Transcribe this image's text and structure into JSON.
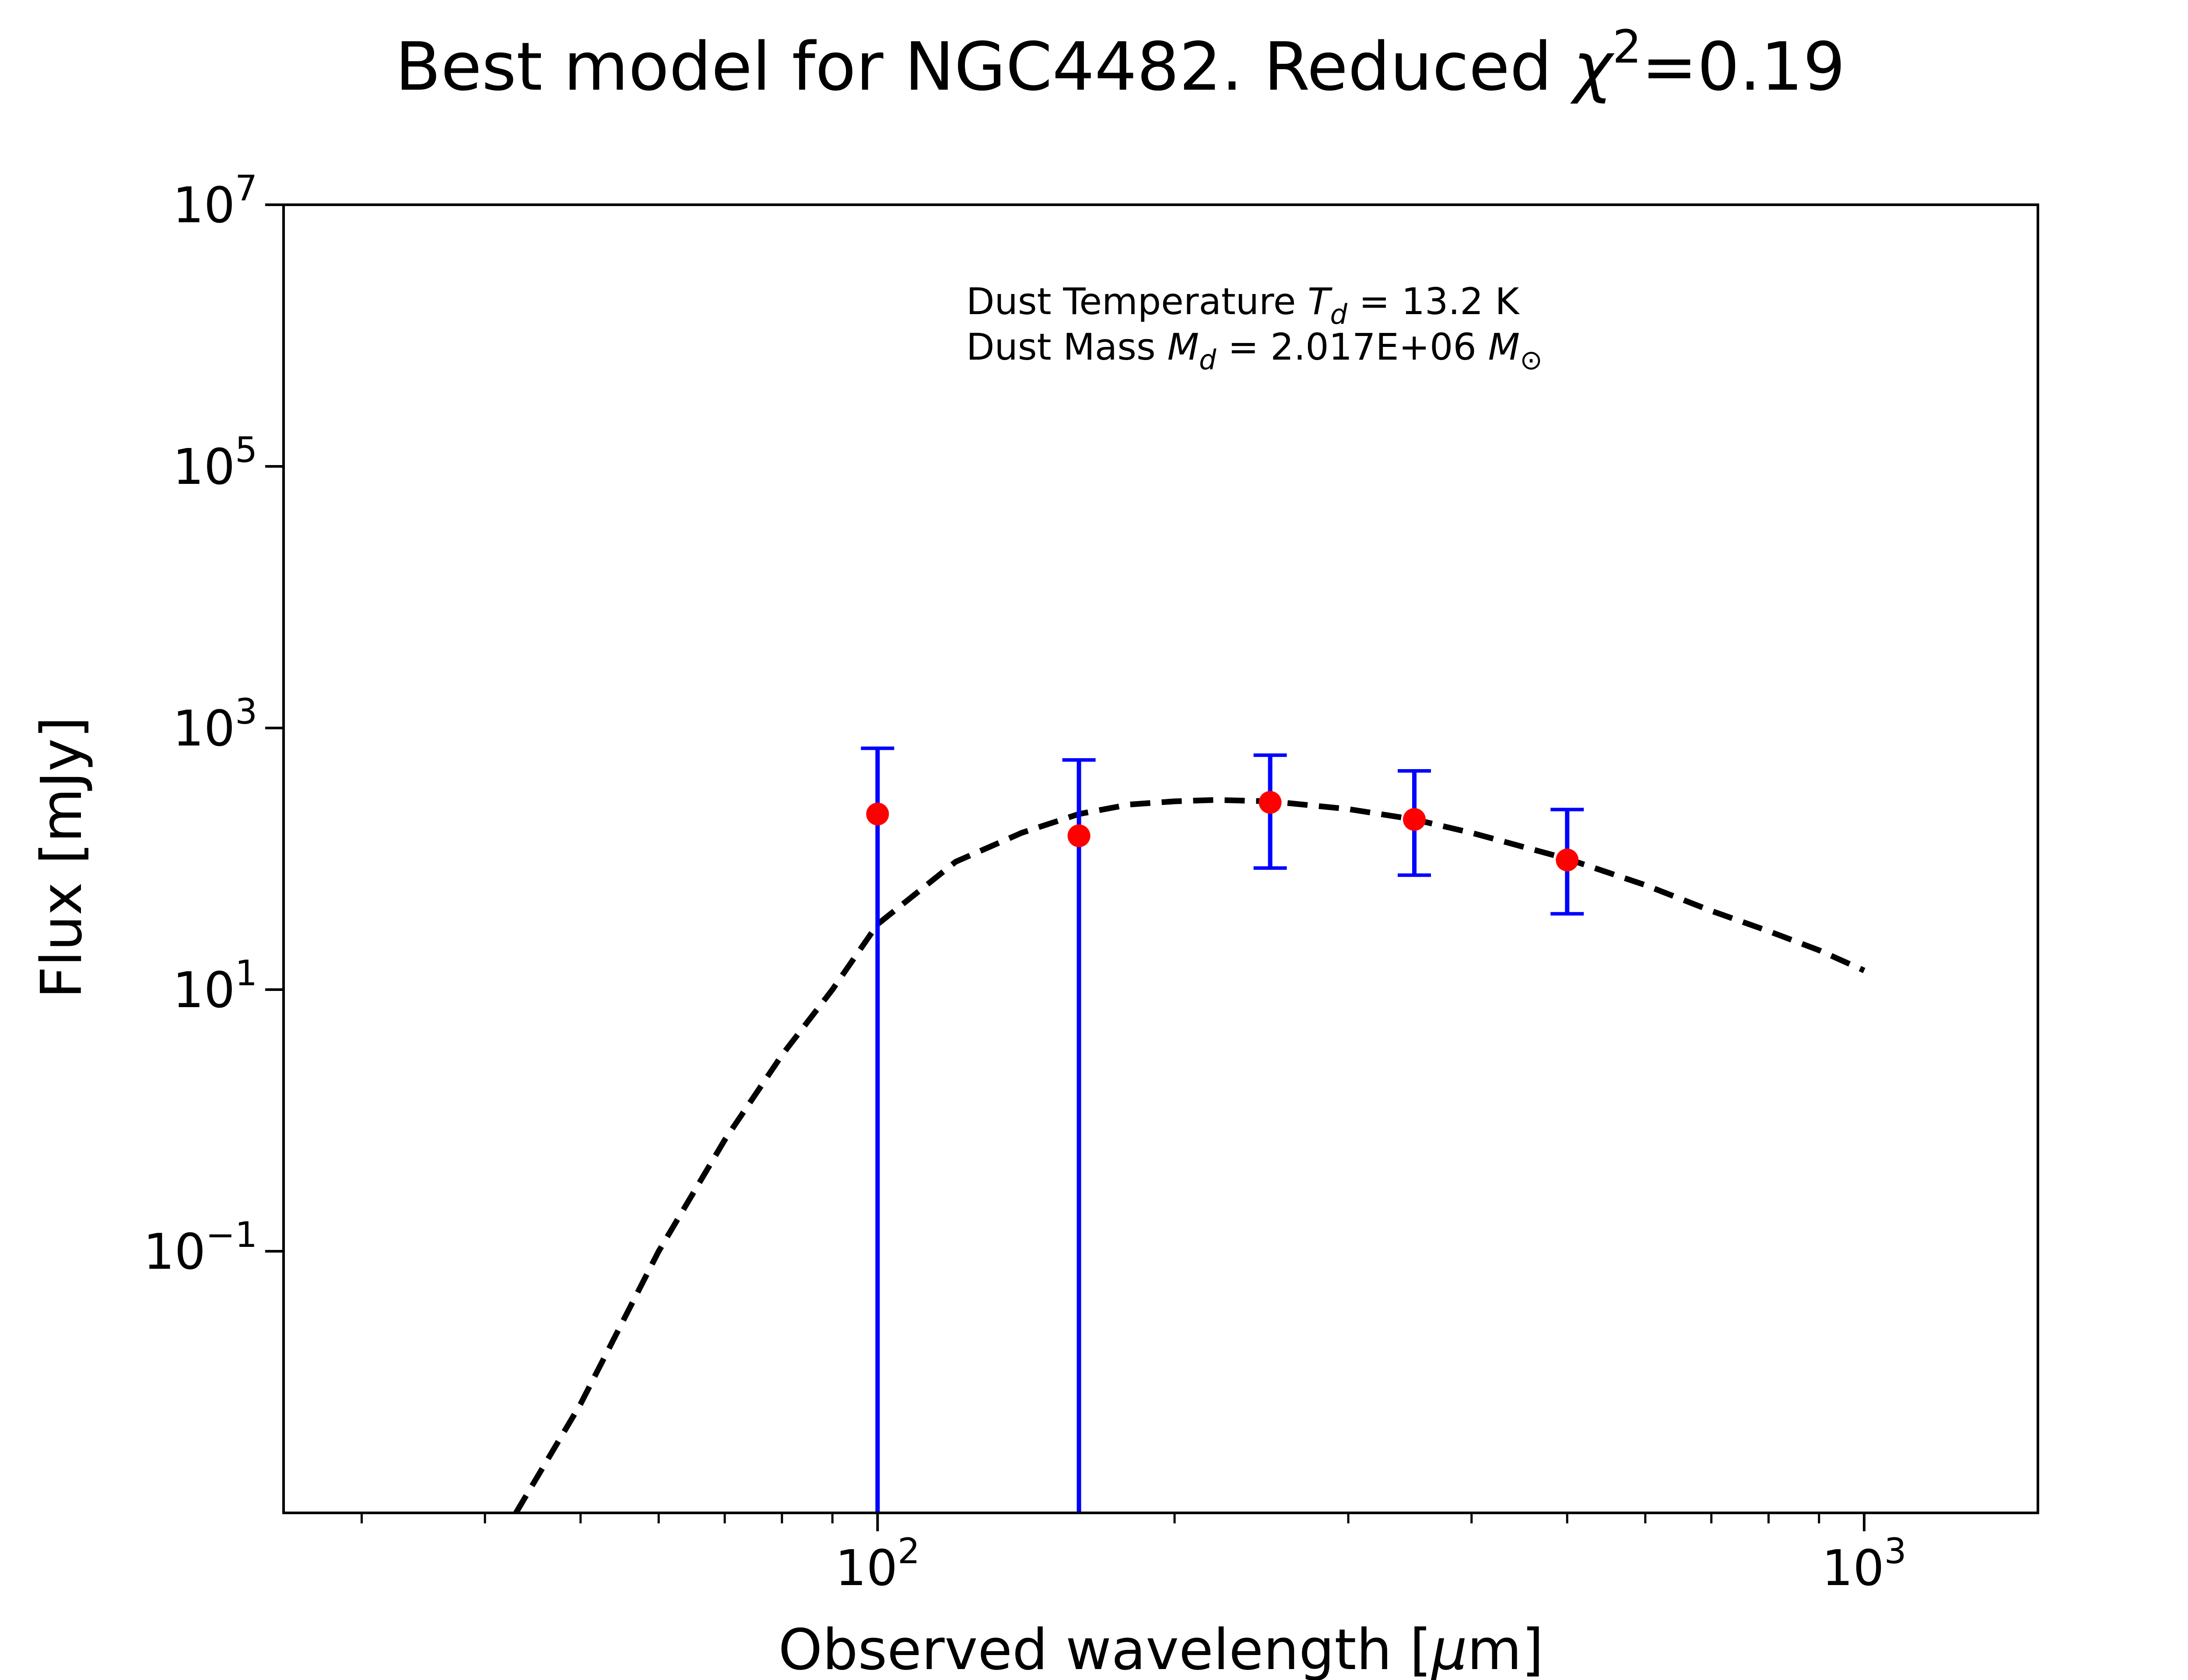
{
  "chart_data": {
    "type": "scatter",
    "title": {
      "prefix": "Best model for NGC4482. Reduced ",
      "chi": "χ",
      "chi_exponent": "2",
      "suffix": "=0.19"
    },
    "xlabel": {
      "text": "Observed wavelength [",
      "mu": "μ",
      "unit": "m]"
    },
    "ylabel": "Flux [mJy]",
    "xscale": "log",
    "yscale": "log",
    "xlim": [
      25,
      1500
    ],
    "ylim": [
      0.001,
      10000000
    ],
    "x_ticks": [
      {
        "value": 100,
        "base": "10",
        "exp": "2"
      },
      {
        "value": 1000,
        "base": "10",
        "exp": "3"
      }
    ],
    "y_ticks": [
      {
        "value": 0.1,
        "base": "10",
        "exp": "−1"
      },
      {
        "value": 10,
        "base": "10",
        "exp": "1"
      },
      {
        "value": 1000,
        "base": "10",
        "exp": "3"
      },
      {
        "value": 100000,
        "base": "10",
        "exp": "5"
      },
      {
        "value": 10000000,
        "base": "10",
        "exp": "7"
      }
    ],
    "annotation": {
      "line1": {
        "prefix": "Dust Temperature ",
        "sym": "T",
        "sub": "d",
        "suffix": " = 13.2 K"
      },
      "line2": {
        "prefix": "Dust Mass ",
        "sym": "M",
        "sub": "d",
        "middle": " = 2.017E+06 ",
        "sym2": "M",
        "sub2": "⊙"
      }
    },
    "observations": [
      {
        "x": 100,
        "y": 220,
        "yerr_low": 220,
        "yerr_high": 480
      },
      {
        "x": 160,
        "y": 150,
        "yerr_low": 150,
        "yerr_high": 420
      },
      {
        "x": 250,
        "y": 270,
        "yerr_low": 185,
        "yerr_high": 350
      },
      {
        "x": 350,
        "y": 200,
        "yerr_low": 125,
        "yerr_high": 270
      },
      {
        "x": 500,
        "y": 98,
        "yerr_low": 60,
        "yerr_high": 140
      }
    ],
    "model_curve": {
      "style": "dashed",
      "points": [
        {
          "x": 43,
          "y": 0.001
        },
        {
          "x": 50,
          "y": 0.0068
        },
        {
          "x": 60,
          "y": 0.1
        },
        {
          "x": 70,
          "y": 0.71
        },
        {
          "x": 80,
          "y": 3.16
        },
        {
          "x": 90,
          "y": 10
        },
        {
          "x": 100,
          "y": 31.6
        },
        {
          "x": 120,
          "y": 95
        },
        {
          "x": 140,
          "y": 158
        },
        {
          "x": 160,
          "y": 220
        },
        {
          "x": 180,
          "y": 260
        },
        {
          "x": 200,
          "y": 275
        },
        {
          "x": 220,
          "y": 282
        },
        {
          "x": 250,
          "y": 275
        },
        {
          "x": 300,
          "y": 240
        },
        {
          "x": 350,
          "y": 200
        },
        {
          "x": 400,
          "y": 158
        },
        {
          "x": 500,
          "y": 100
        },
        {
          "x": 600,
          "y": 63
        },
        {
          "x": 700,
          "y": 40
        },
        {
          "x": 800,
          "y": 28
        },
        {
          "x": 900,
          "y": 20
        },
        {
          "x": 1000,
          "y": 14
        }
      ]
    },
    "colors": {
      "points": "#ff0000",
      "errorbars": "#0000ff",
      "model": "#000000",
      "axes": "#000000"
    },
    "grid": false,
    "legend": "none"
  }
}
